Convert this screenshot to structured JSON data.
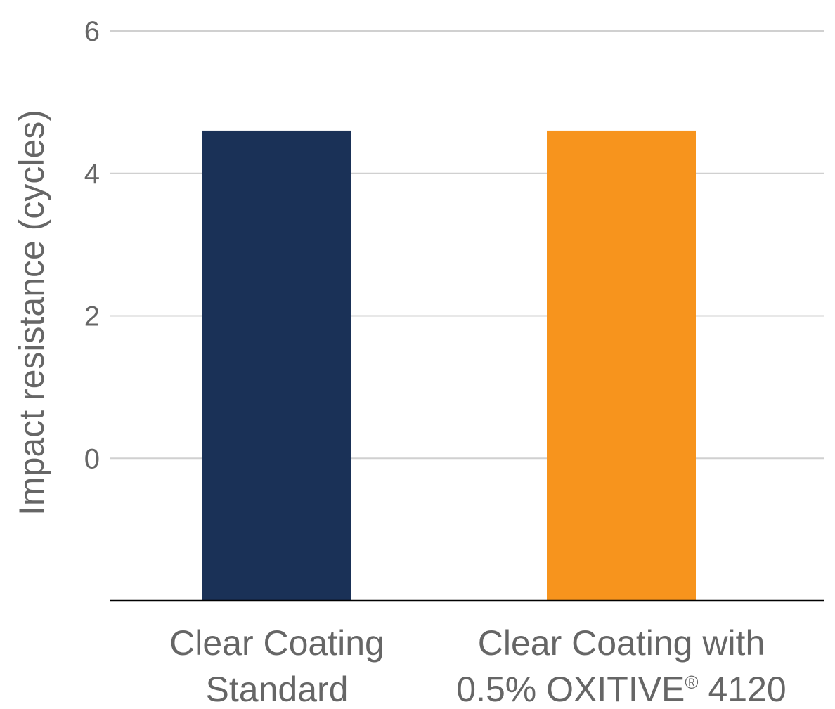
{
  "chart_data": {
    "type": "bar",
    "categories": [
      [
        "Clear Coating",
        "Standard"
      ],
      [
        "Clear Coating with",
        "0.5% OXITIVE",
        "®",
        " 4120"
      ]
    ],
    "category_text": [
      "Clear Coating Standard",
      "Clear Coating with 0.5% OXITIVE® 4120"
    ],
    "values": [
      4.6,
      4.6
    ],
    "colors": [
      "#1a3157",
      "#f7941d"
    ],
    "title": "",
    "xlabel": "",
    "ylabel": "Impact resistance (cycles)",
    "ylim": [
      -2,
      6
    ],
    "yticks": [
      0,
      2,
      4,
      6
    ],
    "grid": true,
    "grid_color": "#d0d0d0",
    "baseline_color": "#000000",
    "legend": "none"
  }
}
